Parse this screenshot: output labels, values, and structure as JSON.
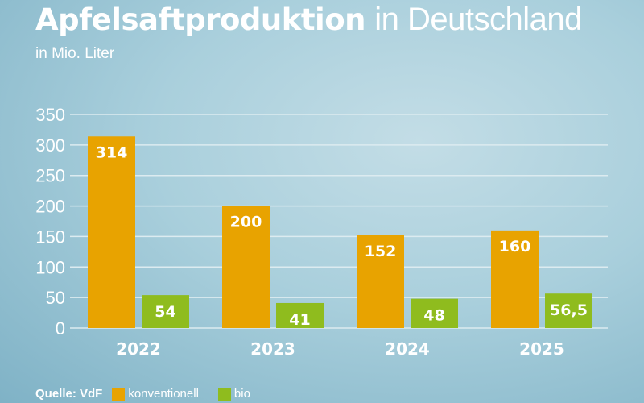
{
  "title_bold": "Apfelsaftproduktion",
  "title_rest": "in Deutschland",
  "subtitle": "in Mio. Liter",
  "source": "Quelle: VdF",
  "chart_data": {
    "type": "bar",
    "title": "Apfelsaftproduktion in Deutschland",
    "ylabel": "in Mio. Liter",
    "categories": [
      "2022",
      "2023",
      "2024",
      "2025"
    ],
    "series": [
      {
        "name": "konventionell",
        "color": "#e8a300",
        "values": [
          314,
          200,
          152,
          160
        ],
        "labels": [
          "314",
          "200",
          "152",
          "160"
        ]
      },
      {
        "name": "bio",
        "color": "#8fbc1e",
        "values": [
          54,
          41,
          48,
          56.5
        ],
        "labels": [
          "54",
          "41",
          "48",
          "56,5"
        ]
      }
    ],
    "ylim": [
      0,
      350
    ],
    "yticks": [
      0,
      50,
      100,
      150,
      200,
      250,
      300,
      350
    ],
    "grid": true,
    "legend": "bottom-left"
  }
}
